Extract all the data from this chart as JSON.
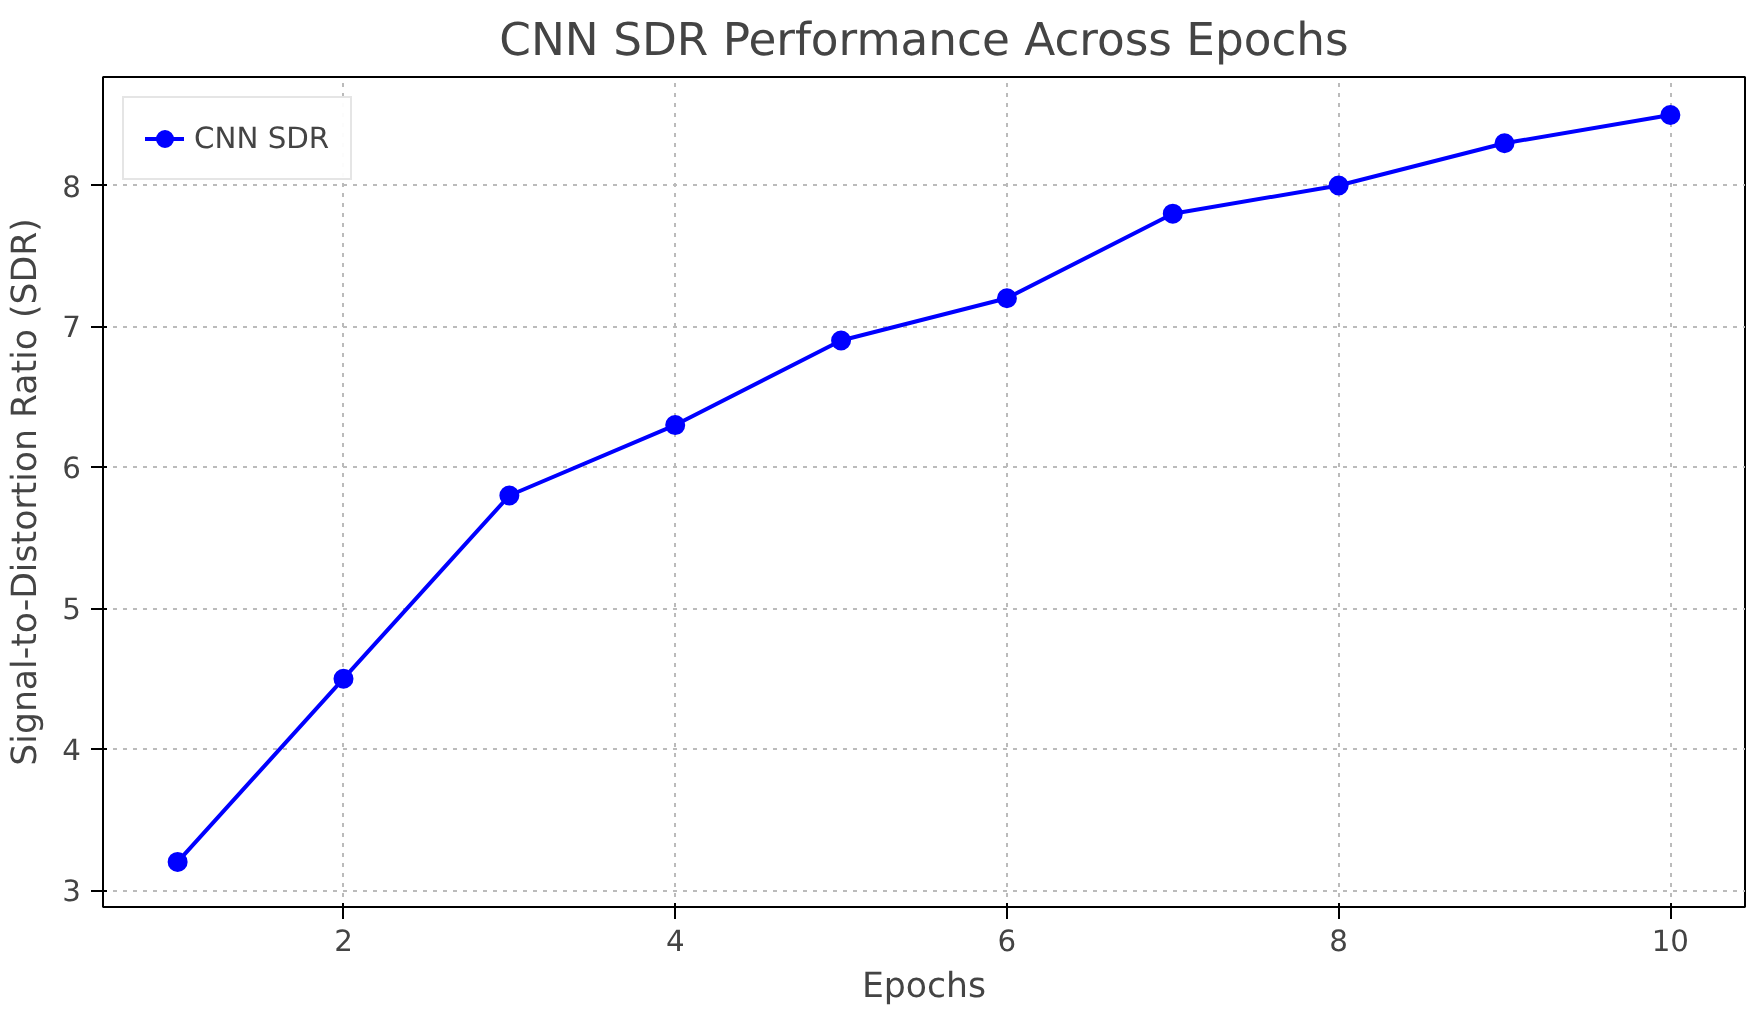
{
  "chart_data": {
    "type": "line",
    "title": "CNN SDR Performance Across Epochs",
    "xlabel": "Epochs",
    "ylabel": "Signal-to-Distortion Ratio (SDR)",
    "x": [
      1,
      2,
      3,
      4,
      5,
      6,
      7,
      8,
      9,
      10
    ],
    "series": [
      {
        "name": "CNN SDR",
        "color": "#0000ff",
        "values": [
          3.2,
          4.5,
          5.8,
          6.3,
          6.9,
          7.2,
          7.8,
          8.0,
          8.3,
          8.5
        ]
      }
    ],
    "xlim": [
      0.55,
      10.45
    ],
    "ylim": [
      2.88,
      8.77
    ],
    "xticks": [
      2,
      4,
      6,
      8,
      10
    ],
    "yticks": [
      3,
      4,
      5,
      6,
      7,
      8
    ],
    "grid": true,
    "legend": "top left",
    "marker": "circle",
    "line_style": "solid"
  }
}
